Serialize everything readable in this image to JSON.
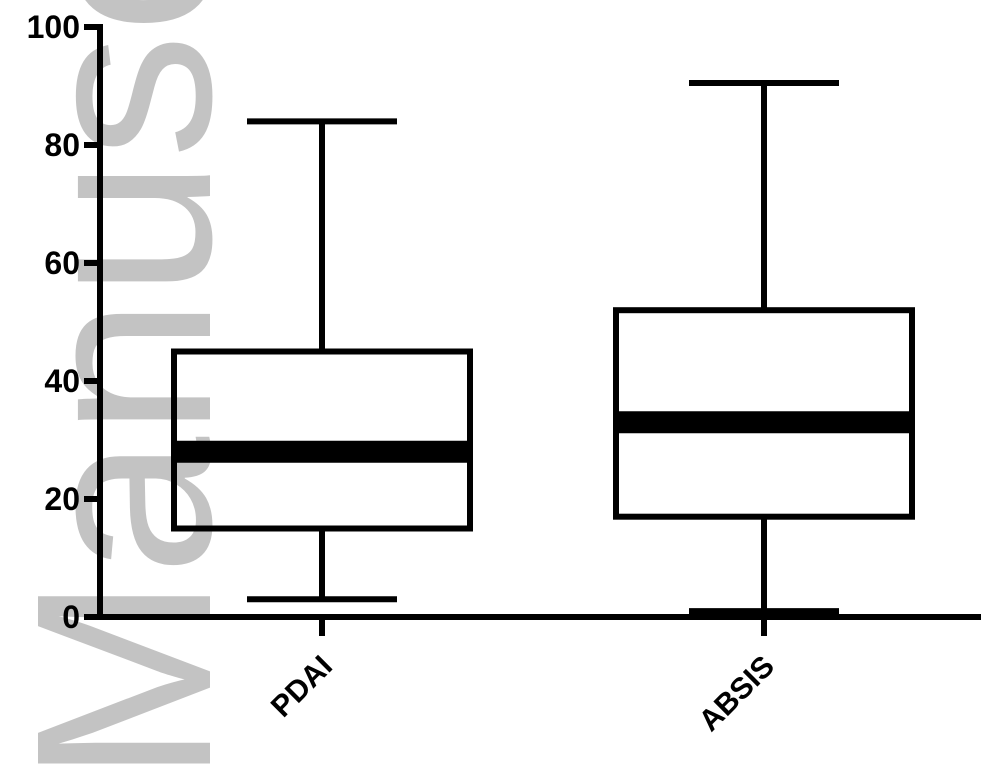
{
  "watermark": "Manuscript",
  "colors": {
    "ink": "#000000",
    "watermark": "#bdbdbd",
    "background": "#ffffff"
  },
  "chart_data": {
    "type": "box",
    "title": "",
    "xlabel": "",
    "ylabel": "",
    "ylim": [
      0,
      100
    ],
    "yticks": [
      0,
      20,
      40,
      60,
      80,
      100
    ],
    "grid": false,
    "categories": [
      "PDAI",
      "ABSIS"
    ],
    "boxes": [
      {
        "category": "PDAI",
        "min": 3,
        "q1": 15,
        "median": 28,
        "q3": 45,
        "max": 84
      },
      {
        "category": "ABSIS",
        "min": 1,
        "q1": 17,
        "median": 33,
        "q3": 52,
        "max": 90.5
      }
    ]
  }
}
